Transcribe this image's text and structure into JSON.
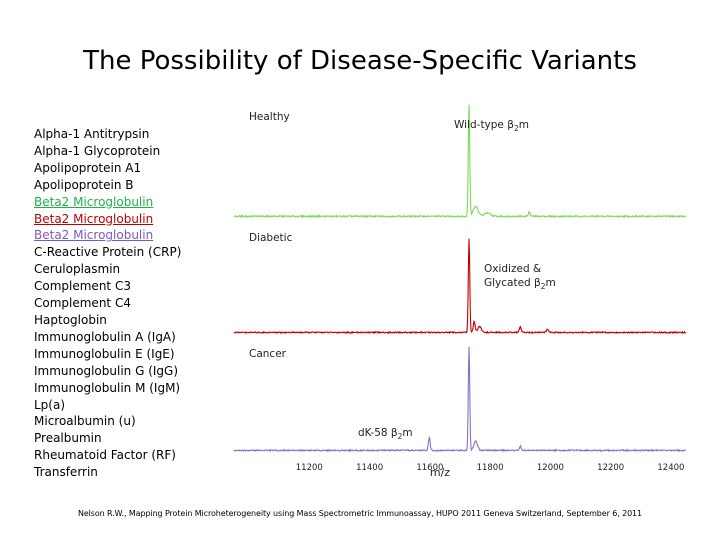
{
  "title": "The Possibility of Disease-Specific Variants",
  "proteins": [
    {
      "name": "Alpha-1 Antitrypsin",
      "color": "#000000",
      "underline": false
    },
    {
      "name": "Alpha-1 Glycoprotein",
      "color": "#000000",
      "underline": false
    },
    {
      "name": "Apolipoprotein A1",
      "color": "#000000",
      "underline": false
    },
    {
      "name": "Apolipoprotein B",
      "color": "#000000",
      "underline": false
    },
    {
      "name": "Beta2 Microglobulin",
      "color": "#22b14c",
      "underline": true
    },
    {
      "name": "Beta2 Microglobulin",
      "color": "#c00000",
      "underline": true
    },
    {
      "name": "Beta2 Microglobulin",
      "color": "#7e57c2",
      "underline": true
    },
    {
      "name": "C-Reactive Protein (CRP)",
      "color": "#000000",
      "underline": false
    },
    {
      "name": "Ceruloplasmin",
      "color": "#000000",
      "underline": false
    },
    {
      "name": "Complement C3",
      "color": "#000000",
      "underline": false
    },
    {
      "name": "Complement C4",
      "color": "#000000",
      "underline": false
    },
    {
      "name": "Haptoglobin",
      "color": "#000000",
      "underline": false
    },
    {
      "name": "Immunoglobulin A (IgA)",
      "color": "#000000",
      "underline": false
    },
    {
      "name": "Immunoglobulin E (IgE)",
      "color": "#000000",
      "underline": false
    },
    {
      "name": "Immunoglobulin G (IgG)",
      "color": "#000000",
      "underline": false
    },
    {
      "name": "Immunoglobulin M (IgM)",
      "color": "#000000",
      "underline": false
    },
    {
      "name": "Lp(a)",
      "color": "#000000",
      "underline": false
    },
    {
      "name": "Microalbumin (u)",
      "color": "#000000",
      "underline": false
    },
    {
      "name": "Prealbumin",
      "color": "#000000",
      "underline": false
    },
    {
      "name": "Rheumatoid Factor (RF)",
      "color": "#000000",
      "underline": false
    },
    {
      "name": "Transferrin",
      "color": "#000000",
      "underline": false
    }
  ],
  "citation": "Nelson R.W., Mapping Protein Microheterogeneity using Mass Spectrometric Immunoassay, HUPO 2011 Geneva Switzerland, September 6, 2011",
  "chart_data": {
    "type": "line",
    "xlabel": "m/z",
    "xlim": [
      10950,
      12450
    ],
    "xticks": [
      11200,
      11400,
      11600,
      11800,
      12000,
      12200,
      12400
    ],
    "series": [
      {
        "name": "Healthy",
        "color": "#7ed957",
        "annotation": {
          "text": "Wild-type β₂m",
          "prefix": "Wild-type ",
          "symbol": "β",
          "sub": "2",
          "suffix": "m",
          "x": 11730
        },
        "peaks": [
          {
            "x": 11730,
            "height": 1.0,
            "width": 2.4
          },
          {
            "x": 11752,
            "height": 0.09,
            "width": 8
          },
          {
            "x": 11790,
            "height": 0.03,
            "width": 10
          },
          {
            "x": 11930,
            "height": 0.04,
            "width": 3
          }
        ]
      },
      {
        "name": "Diabetic",
        "color": "#c00000",
        "annotation": {
          "text": "Oxidized & Glycated β₂m",
          "line1": "Oxidized &",
          "prefix": "Glycated ",
          "symbol": "β",
          "sub": "2",
          "suffix": "m",
          "x": 11730
        },
        "peaks": [
          {
            "x": 11730,
            "height": 1.0,
            "width": 2.4
          },
          {
            "x": 11747,
            "height": 0.12,
            "width": 3
          },
          {
            "x": 11765,
            "height": 0.06,
            "width": 6
          },
          {
            "x": 11900,
            "height": 0.06,
            "width": 3
          },
          {
            "x": 11990,
            "height": 0.03,
            "width": 4
          }
        ]
      },
      {
        "name": "Cancer",
        "color": "#8c6fc7",
        "annotation": {
          "text": "dK-58 β₂m",
          "prefix": "dK-58 ",
          "symbol": "β",
          "sub": "2",
          "suffix": "m",
          "x": 11598
        },
        "peaks": [
          {
            "x": 11730,
            "height": 1.0,
            "width": 2.4
          },
          {
            "x": 11598,
            "height": 0.12,
            "width": 3
          },
          {
            "x": 11752,
            "height": 0.09,
            "width": 6
          },
          {
            "x": 11900,
            "height": 0.04,
            "width": 3
          }
        ]
      }
    ]
  }
}
